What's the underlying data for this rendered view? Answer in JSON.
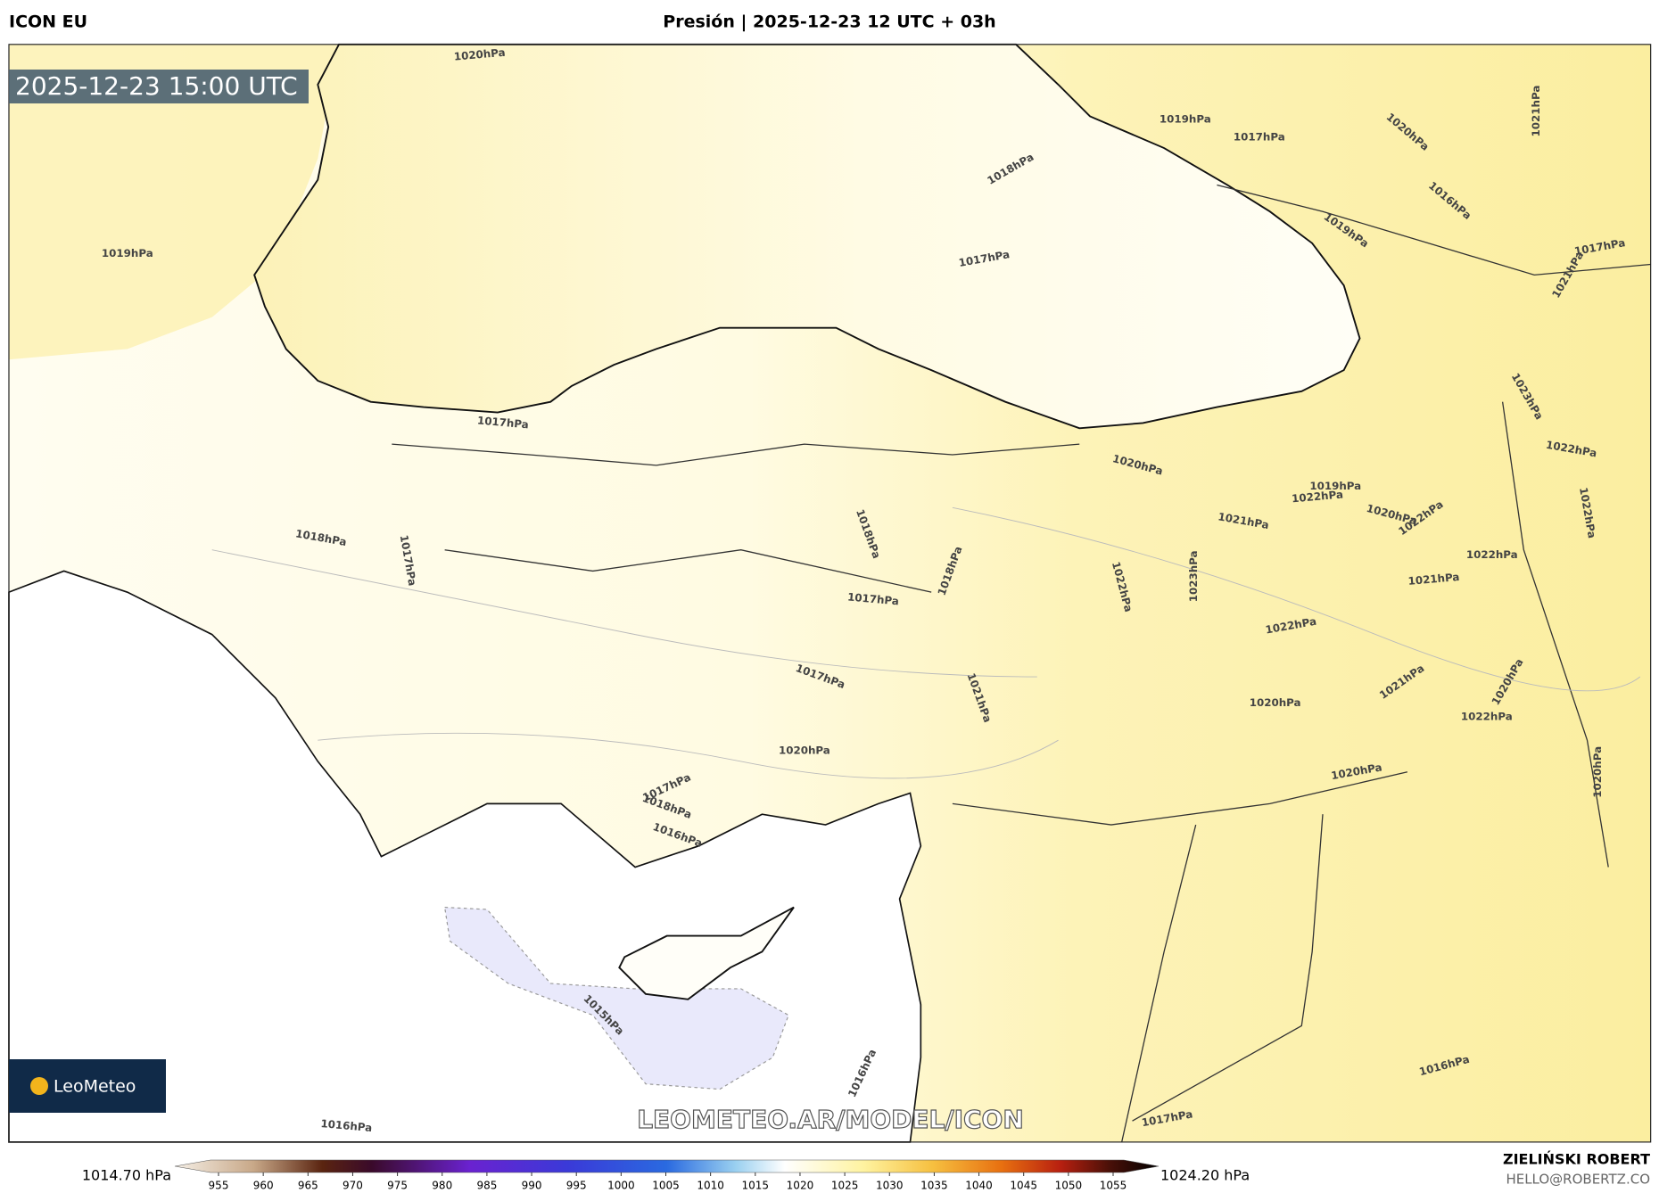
{
  "header": {
    "model": "ICON EU",
    "title": "Presión | 2025-12-23 12 UTC + 03h"
  },
  "map": {
    "timestamp": "2025-12-23 15:00 UTC",
    "watermark": "LEOMETEO.AR/MODEL/ICON",
    "logo": "LeoMeteo",
    "contour_labels": [
      "1020hPa",
      "1019hPa",
      "1018hPa",
      "1017hPa",
      "1019hPa",
      "1017hPa",
      "1020hPa",
      "1021hPa",
      "1016hPa",
      "1019hPa",
      "1017hPa",
      "1021hPa",
      "1017hPa",
      "1018hPa",
      "1017hPa",
      "1018hPa",
      "1018hPa",
      "1017hPa",
      "1017hPa",
      "1020hPa",
      "1017hPa",
      "1018hPa",
      "1016hPa",
      "1020hPa",
      "1019hPa",
      "1022hPa",
      "1021hPa",
      "1020hPa",
      "1022hPa",
      "1022hPa",
      "1022hPa",
      "1022hPa",
      "1023hPa",
      "1022hPa",
      "1021hPa",
      "1022hPa",
      "1021hPa",
      "1020hPa",
      "1021hPa",
      "1020hPa",
      "1022hPa",
      "1020hPa",
      "1020hPa",
      "1023hPa",
      "1015hPa",
      "1016hPa",
      "1016hPa",
      "1017hPa",
      "1016hPa"
    ]
  },
  "colorbar": {
    "min_label": "1014.70 hPa",
    "max_label": "1024.20 hPa",
    "ticks": [
      955,
      960,
      965,
      970,
      975,
      980,
      985,
      990,
      995,
      1000,
      1005,
      1010,
      1015,
      1020,
      1025,
      1030,
      1035,
      1040,
      1045,
      1050,
      1055
    ]
  },
  "footer": {
    "author": "ZIELIŃSKI ROBERT",
    "email": "HELLO@ROBERTZ.CO"
  }
}
